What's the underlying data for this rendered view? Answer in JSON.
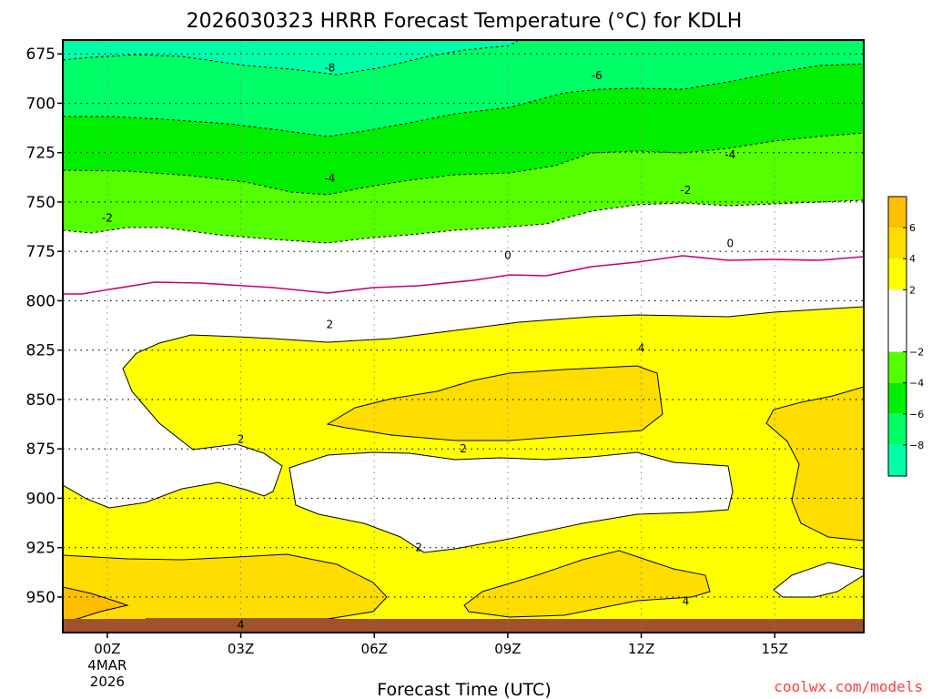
{
  "chart_data": {
    "type": "heatmap",
    "title": "2026030323 HRRR Forecast Temperature (°C) for KDLH",
    "xlabel": "Forecast Time (UTC)",
    "ylabel": "",
    "credit": "coolwx.com/models",
    "x_ticks": [
      {
        "hour": 0,
        "label": "00Z",
        "label2": "4MAR",
        "label3": "2026"
      },
      {
        "hour": 3,
        "label": "03Z",
        "label2": "",
        "label3": ""
      },
      {
        "hour": 6,
        "label": "06Z",
        "label2": "",
        "label3": ""
      },
      {
        "hour": 9,
        "label": "09Z",
        "label2": "",
        "label3": ""
      },
      {
        "hour": 12,
        "label": "12Z",
        "label2": "",
        "label3": ""
      },
      {
        "hour": 15,
        "label": "15Z",
        "label2": "",
        "label3": ""
      }
    ],
    "xlim": [
      -1,
      17
    ],
    "ylim": [
      968,
      668
    ],
    "y_ticks": [
      {
        "value": 675,
        "label": "675"
      },
      {
        "value": 700,
        "label": "700"
      },
      {
        "value": 725,
        "label": "725"
      },
      {
        "value": 750,
        "label": "750"
      },
      {
        "value": 775,
        "label": "775"
      },
      {
        "value": 800,
        "label": "800"
      },
      {
        "value": 825,
        "label": "825"
      },
      {
        "value": 850,
        "label": "850"
      },
      {
        "value": 875,
        "label": "875"
      },
      {
        "value": 900,
        "label": "900"
      },
      {
        "value": 925,
        "label": "925"
      },
      {
        "value": 950,
        "label": "950"
      }
    ],
    "grid": true,
    "colorbar": {
      "position": "right",
      "bands": [
        {
          "from": 6,
          "to": 8,
          "color": "#ffbf00"
        },
        {
          "from": 4,
          "to": 6,
          "color": "#ffdd00"
        },
        {
          "from": 2,
          "to": 4,
          "color": "#ffff00"
        },
        {
          "from": -2,
          "to": 2,
          "color": "#ffffff"
        },
        {
          "from": -4,
          "to": -2,
          "color": "#55ff00"
        },
        {
          "from": -6,
          "to": -4,
          "color": "#00ee00"
        },
        {
          "from": -8,
          "to": -6,
          "color": "#00ff66"
        },
        {
          "from": -10,
          "to": -8,
          "color": "#00ffaa"
        }
      ],
      "labels": [
        {
          "value": 6,
          "label": "6"
        },
        {
          "value": 4,
          "label": "4"
        },
        {
          "value": 2,
          "label": "2"
        },
        {
          "value": -2,
          "label": "−2"
        },
        {
          "value": -4,
          "label": "−4"
        },
        {
          "value": -6,
          "label": "−6"
        },
        {
          "value": -8,
          "label": "−8"
        }
      ]
    },
    "contour_labels": [
      {
        "hour": 5,
        "pressure": 682,
        "label": "-8"
      },
      {
        "hour": 11,
        "pressure": 686,
        "label": "-6"
      },
      {
        "hour": 5,
        "pressure": 738,
        "label": "-4"
      },
      {
        "hour": 14,
        "pressure": 726,
        "label": "-4"
      },
      {
        "hour": 0,
        "pressure": 758,
        "label": "-2"
      },
      {
        "hour": 13,
        "pressure": 744,
        "label": "-2"
      },
      {
        "hour": 9,
        "pressure": 777,
        "label": "0"
      },
      {
        "hour": 14,
        "pressure": 771,
        "label": "0"
      },
      {
        "hour": 5,
        "pressure": 812,
        "label": "2"
      },
      {
        "hour": 3,
        "pressure": 870,
        "label": "2"
      },
      {
        "hour": 8,
        "pressure": 875,
        "label": "2"
      },
      {
        "hour": 7,
        "pressure": 925,
        "label": "2"
      },
      {
        "hour": 12,
        "pressure": 824,
        "label": "4"
      },
      {
        "hour": 13,
        "pressure": 952,
        "label": "4"
      },
      {
        "hour": 3,
        "pressure": 964,
        "label": "4"
      }
    ]
  },
  "colors": {
    "freezing_line": "#c8006e",
    "ground": "#a0522d",
    "contour": "#000000"
  }
}
